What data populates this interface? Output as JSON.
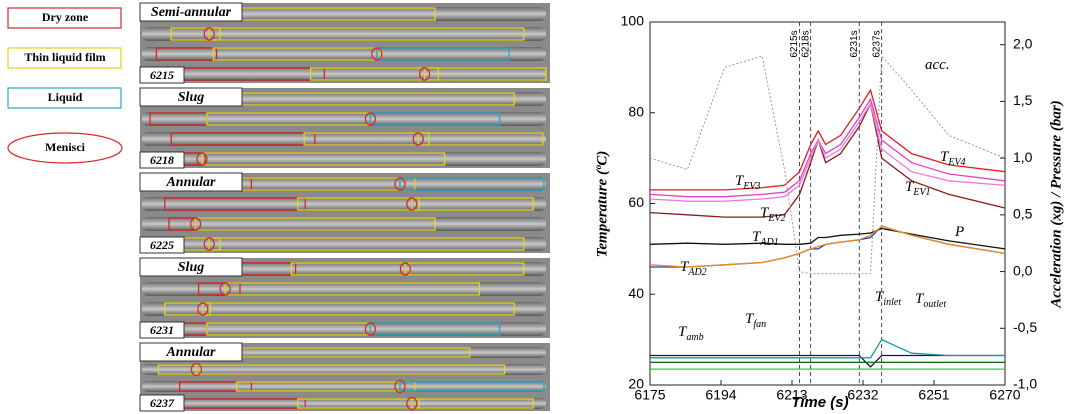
{
  "legend": [
    {
      "label": "Dry zone",
      "color": "#d62728"
    },
    {
      "label": "Thin liquid film",
      "color": "#e6d31e"
    },
    {
      "label": "Liquid",
      "color": "#2aa6c6"
    },
    {
      "label": "Menisci",
      "color": "#d62728"
    }
  ],
  "panels": [
    {
      "regime": "Semi-annular",
      "time": "6215"
    },
    {
      "regime": "Slug",
      "time": "6218"
    },
    {
      "regime": "Annular",
      "time": "6225"
    },
    {
      "regime": "Slug",
      "time": "6231"
    },
    {
      "regime": "Annular",
      "time": "6237"
    }
  ],
  "chart_data": {
    "type": "line",
    "xlabel": "Time (s)",
    "ylabel": "Temperature (ºC)",
    "y2label": "Acceleration (xg) / Pressure (bar)",
    "x": [
      6175,
      6185,
      6195,
      6205,
      6211,
      6215,
      6218,
      6220,
      6222,
      6226,
      6231,
      6234,
      6237,
      6245,
      6255,
      6270
    ],
    "xlim": [
      6175,
      6270
    ],
    "xticks": [
      6175,
      6194,
      6213,
      6232,
      6251,
      6270
    ],
    "ylim": [
      20,
      100
    ],
    "yticks": [
      20,
      40,
      60,
      80,
      100
    ],
    "y2lim": [
      -1.0,
      2.2
    ],
    "y2ticks": [
      {
        "value": -1.0,
        "label": "-1,0"
      },
      {
        "value": -0.5,
        "label": "-0,5"
      },
      {
        "value": 0.0,
        "label": "0,0"
      },
      {
        "value": 0.5,
        "label": "0,5"
      },
      {
        "value": 1.0,
        "label": "1,0"
      },
      {
        "value": 1.5,
        "label": "1,5"
      },
      {
        "value": 2.0,
        "label": "2,0"
      }
    ],
    "markers": [
      {
        "x": 6215,
        "label": "6215s"
      },
      {
        "x": 6218,
        "label": "6218s"
      },
      {
        "x": 6231,
        "label": "6231s"
      },
      {
        "x": 6237,
        "label": "6237s"
      }
    ],
    "series": [
      {
        "name": "T",
        "subscript": "EV3",
        "color": "#e41a1c",
        "values": [
          63,
          63,
          63,
          63.5,
          64,
          67,
          73,
          76,
          73,
          75,
          81,
          85,
          76,
          71,
          68.5,
          67
        ]
      },
      {
        "name": "T",
        "subscript": "EV4",
        "color": "#e040c8",
        "values": [
          62,
          61.5,
          61.5,
          62,
          62.5,
          65,
          71,
          74,
          71,
          73,
          79,
          83,
          74,
          69,
          66.5,
          65
        ]
      },
      {
        "name": "T",
        "subscript": "EV1",
        "color": "#8b1a1a",
        "values": [
          58,
          57.5,
          57,
          57,
          57.5,
          62,
          69,
          74,
          69,
          71,
          77,
          82,
          70,
          65,
          62,
          59
        ]
      },
      {
        "name": "T",
        "subscript": "EV2",
        "color": "#f07ad8",
        "values": [
          61,
          60.5,
          60.5,
          61,
          61.5,
          64,
          70,
          74,
          70,
          72,
          78,
          82,
          72,
          67,
          65,
          64
        ]
      },
      {
        "name": "P",
        "color": "#111111",
        "axis": "y2",
        "values": [
          0.24,
          0.25,
          0.24,
          0.25,
          0.24,
          0.24,
          0.25,
          0.3,
          0.3,
          0.32,
          0.33,
          0.34,
          0.38,
          0.33,
          0.27,
          0.2
        ]
      },
      {
        "name": "T",
        "subscript": "AD1",
        "color": "#1f3fbf",
        "values": [
          46,
          46,
          46.5,
          47,
          48,
          49,
          50,
          50,
          51,
          51.5,
          52,
          52.5,
          55,
          53,
          51,
          49
        ]
      },
      {
        "name": "T",
        "subscript": "AD2",
        "color": "#f08c1e",
        "values": [
          46.5,
          46,
          46.5,
          47,
          48,
          49,
          50,
          50.5,
          51,
          51.5,
          52,
          53,
          55,
          53,
          51,
          49
        ]
      },
      {
        "name": "T",
        "subscript": "inlet",
        "color": "#10106e",
        "values": [
          26.5,
          26.5,
          26.5,
          26.5,
          26.5,
          26.5,
          26.5,
          26.5,
          26.5,
          26.5,
          26.5,
          24,
          26.5,
          26.5,
          26.5,
          26.5
        ]
      },
      {
        "name": "T",
        "subscript": "outlet",
        "color": "#1a9a9a",
        "values": [
          26,
          26,
          26,
          26,
          26,
          26,
          26,
          26,
          26,
          26,
          26,
          26,
          30,
          27,
          26.5,
          26.5
        ]
      },
      {
        "name": "T",
        "subscript": "amb",
        "color": "#2ecc40",
        "values": [
          23.5,
          23.5,
          23.5,
          23.5,
          23.5,
          23.5,
          23.5,
          23.5,
          23.5,
          23.5,
          23.5,
          23.5,
          23.5,
          23.5,
          23.5,
          23.5
        ]
      },
      {
        "name": "T",
        "subscript": "fan",
        "color": "#1e6e1e",
        "values": [
          25,
          25,
          25,
          25,
          25,
          25,
          25,
          25,
          25,
          25,
          25,
          25,
          25,
          25,
          25,
          25
        ]
      },
      {
        "name": "acc.",
        "color": "#999999",
        "axis": "y2",
        "dashed": true,
        "values": [
          1.0,
          0.9,
          1.8,
          1.9,
          0.9,
          0.0,
          -0.02,
          -0.02,
          -0.02,
          -0.02,
          -0.02,
          -0.02,
          1.9,
          1.6,
          1.2,
          1.0
        ]
      }
    ]
  }
}
